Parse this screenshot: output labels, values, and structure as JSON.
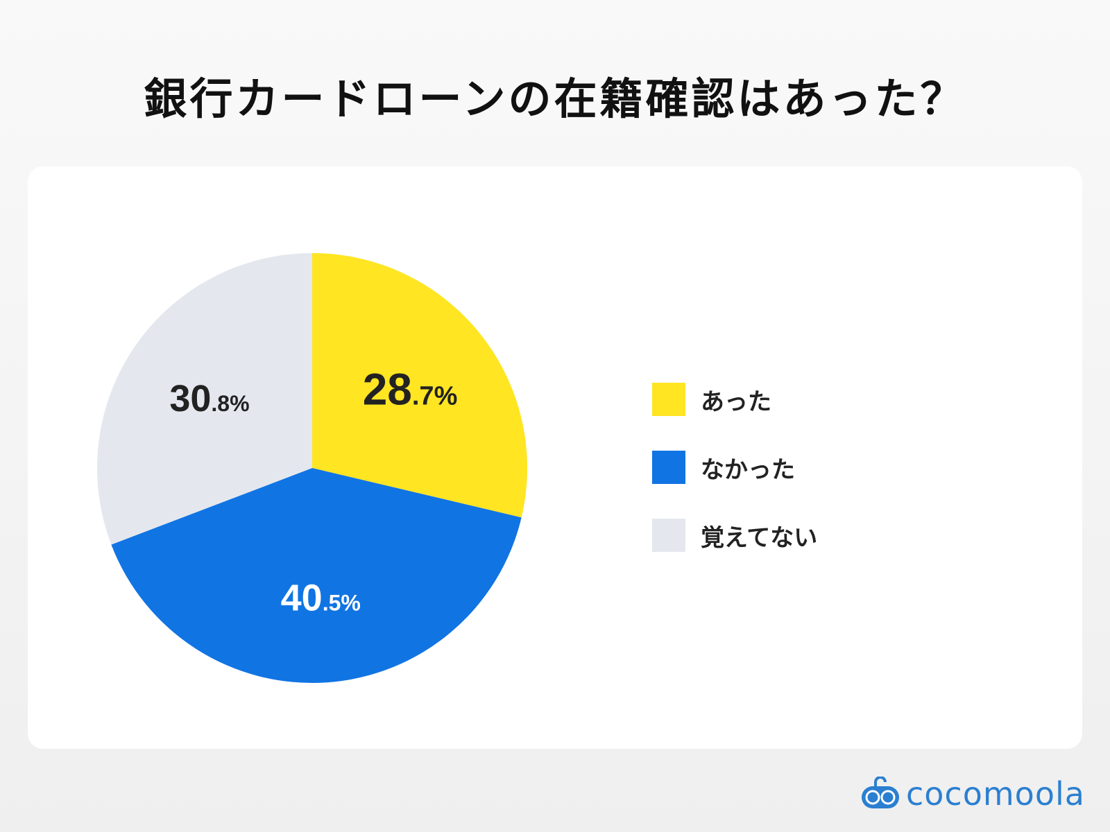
{
  "chart_data": {
    "type": "pie",
    "title": "銀行カードローンの在籍確認はあった？",
    "legend_position": "right",
    "slices": [
      {
        "label": "あった",
        "value": 28.7,
        "display_int": "28",
        "display_dec": ".7%",
        "color": "#FFE522",
        "text_color": "#222222"
      },
      {
        "label": "なかった",
        "value": 40.5,
        "display_int": "40",
        "display_dec": ".5%",
        "color": "#1174E3",
        "text_color": "#FFFFFF"
      },
      {
        "label": "覚えてない",
        "value": 30.8,
        "display_int": "30",
        "display_dec": ".8%",
        "color": "#E4E8EE",
        "text_color": "#222222"
      }
    ]
  },
  "brand": {
    "logo_text": "cocomoola",
    "color": "#2B7FD0"
  }
}
